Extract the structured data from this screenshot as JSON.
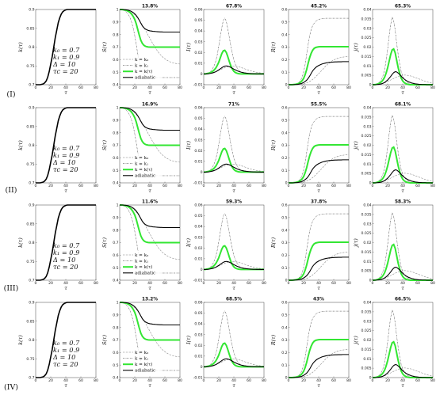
{
  "chart_data": {
    "type": "line",
    "x": [
      0,
      2,
      4,
      6,
      8,
      10,
      12,
      14,
      16,
      18,
      20,
      22,
      24,
      26,
      28,
      30,
      32,
      34,
      36,
      38,
      40,
      42,
      44,
      46,
      48,
      50,
      52,
      54,
      56,
      58,
      60,
      62,
      64,
      66,
      68,
      70,
      72,
      74,
      76,
      78,
      80
    ],
    "row_labels": [
      "(I)",
      "(II)",
      "(III)",
      "(IV)"
    ],
    "xlabel": "τ",
    "panel_ylabels": [
      "k(τ)",
      "S(τ)",
      "I(τ)",
      "R(τ)",
      "j(τ)"
    ],
    "parameter_text": [
      "k₀ = 0.7",
      "k₁ = 0.9",
      "Δ = 10",
      "τc = 20"
    ],
    "legend_entries": [
      "k = k₀",
      "k = k₁",
      "k = k(τ)",
      "adiabatic"
    ],
    "percentages": [
      [
        "13.8%",
        "67.8%",
        "45.2%",
        "65.3%"
      ],
      [
        "16.9%",
        "71%",
        "55.5%",
        "68.1%"
      ],
      [
        "11.6%",
        "59.3%",
        "37.8%",
        "58.3%"
      ],
      [
        "13.2%",
        "68.5%",
        "43%",
        "66.5%"
      ]
    ],
    "axes": {
      "xlim": [
        0,
        80
      ],
      "xticks": [
        0,
        20,
        40,
        60,
        80
      ],
      "k": {
        "ylim": [
          0.7,
          0.9
        ],
        "yticks": [
          0.7,
          0.75,
          0.8,
          0.85,
          0.9
        ]
      },
      "S": {
        "ylim": [
          0.4,
          1.0
        ],
        "yticks": [
          0.4,
          0.5,
          0.6,
          0.7,
          0.8,
          0.9,
          1
        ]
      },
      "I": {
        "ylim": [
          -0.01,
          0.06
        ],
        "yticks": [
          -0.01,
          0,
          0.01,
          0.02,
          0.03,
          0.04,
          0.05,
          0.06
        ]
      },
      "R": {
        "ylim": [
          0,
          0.6
        ],
        "yticks": [
          0,
          0.1,
          0.2,
          0.3,
          0.4,
          0.5,
          0.6
        ]
      },
      "j": {
        "ylim": [
          0,
          0.04
        ],
        "yticks": [
          0,
          0.005,
          0.01,
          0.015,
          0.02,
          0.025,
          0.03,
          0.035,
          0.04
        ]
      }
    },
    "colors": {
      "k0": "#808080",
      "k1": "#333333",
      "k_tau": "#33e633",
      "adiabatic": "#000000"
    },
    "k_curve": [
      0.7,
      0.7,
      0.7,
      0.7,
      0.701,
      0.702,
      0.705,
      0.71,
      0.72,
      0.735,
      0.755,
      0.775,
      0.8,
      0.825,
      0.845,
      0.865,
      0.878,
      0.888,
      0.894,
      0.897,
      0.899,
      0.9,
      0.9,
      0.9,
      0.9,
      0.9,
      0.9,
      0.9,
      0.9,
      0.9,
      0.9,
      0.9,
      0.9,
      0.9,
      0.9,
      0.9,
      0.9,
      0.9,
      0.9,
      0.9,
      0.9
    ],
    "S_series": [
      {
        "name": "k = k₀",
        "values": [
          1,
          1,
          1,
          0.998,
          0.996,
          0.992,
          0.988,
          0.982,
          0.975,
          0.966,
          0.956,
          0.944,
          0.93,
          0.914,
          0.897,
          0.878,
          0.858,
          0.836,
          0.814,
          0.792,
          0.77,
          0.748,
          0.727,
          0.707,
          0.688,
          0.67,
          0.654,
          0.64,
          0.627,
          0.616,
          0.606,
          0.598,
          0.591,
          0.585,
          0.58,
          0.576,
          0.573,
          0.57,
          0.568,
          0.566,
          0.565
        ]
      },
      {
        "name": "k = k₁",
        "values": [
          1,
          0.999,
          0.997,
          0.992,
          0.984,
          0.972,
          0.955,
          0.93,
          0.895,
          0.85,
          0.79,
          0.72,
          0.645,
          0.58,
          0.53,
          0.5,
          0.48,
          0.47,
          0.465,
          0.462,
          0.46,
          0.459,
          0.458,
          0.458,
          0.457,
          0.457,
          0.457,
          0.457,
          0.457,
          0.457,
          0.457,
          0.457,
          0.457,
          0.457,
          0.457,
          0.457,
          0.457,
          0.457,
          0.457,
          0.457,
          0.457
        ]
      },
      {
        "name": "k = k(τ)",
        "values": [
          1,
          1,
          0.999,
          0.997,
          0.994,
          0.99,
          0.984,
          0.975,
          0.962,
          0.944,
          0.92,
          0.885,
          0.84,
          0.795,
          0.755,
          0.73,
          0.715,
          0.707,
          0.703,
          0.701,
          0.7,
          0.7,
          0.7,
          0.7,
          0.7,
          0.7,
          0.7,
          0.7,
          0.7,
          0.7,
          0.7,
          0.7,
          0.7,
          0.7,
          0.7,
          0.7,
          0.7,
          0.7,
          0.7,
          0.7,
          0.7
        ]
      },
      {
        "name": "adiabatic",
        "values": [
          1,
          1,
          1,
          0.999,
          0.998,
          0.996,
          0.993,
          0.989,
          0.983,
          0.975,
          0.965,
          0.952,
          0.935,
          0.915,
          0.892,
          0.87,
          0.855,
          0.845,
          0.838,
          0.833,
          0.83,
          0.828,
          0.826,
          0.825,
          0.824,
          0.823,
          0.822,
          0.821,
          0.821,
          0.82,
          0.82,
          0.82,
          0.82,
          0.82,
          0.82,
          0.82,
          0.82,
          0.82,
          0.82,
          0.82,
          0.82
        ]
      }
    ],
    "I_series": [
      {
        "name": "k = k₀",
        "values": [
          0,
          0,
          0.0002,
          0.0004,
          0.0007,
          0.001,
          0.0014,
          0.0018,
          0.0023,
          0.0028,
          0.0034,
          0.004,
          0.0046,
          0.0052,
          0.0058,
          0.0063,
          0.0067,
          0.007,
          0.0072,
          0.0073,
          0.0073,
          0.0072,
          0.007,
          0.0067,
          0.0063,
          0.0059,
          0.0054,
          0.0049,
          0.0044,
          0.0039,
          0.0034,
          0.003,
          0.0026,
          0.0022,
          0.0019,
          0.0016,
          0.0013,
          0.0011,
          0.0009,
          0.0007,
          0.0006
        ]
      },
      {
        "name": "k = k₁",
        "values": [
          0,
          0.0002,
          0.0005,
          0.001,
          0.0018,
          0.003,
          0.005,
          0.008,
          0.012,
          0.018,
          0.026,
          0.035,
          0.043,
          0.05,
          0.052,
          0.049,
          0.042,
          0.034,
          0.026,
          0.019,
          0.013,
          0.009,
          0.006,
          0.004,
          0.0025,
          0.0015,
          0.001,
          0.0006,
          0.0004,
          0.0002,
          0.0001,
          0,
          0,
          0,
          0,
          0,
          0,
          0,
          0,
          0,
          0
        ]
      },
      {
        "name": "k = k(τ)",
        "values": [
          0,
          0,
          0.0003,
          0.0006,
          0.001,
          0.0016,
          0.0025,
          0.0038,
          0.0055,
          0.008,
          0.011,
          0.015,
          0.019,
          0.0215,
          0.022,
          0.02,
          0.016,
          0.0115,
          0.0075,
          0.0045,
          0.0025,
          0.0013,
          0.0007,
          0.0003,
          0.0001,
          0,
          0,
          0,
          0,
          0,
          0,
          0,
          0,
          0,
          0,
          0,
          0,
          0,
          0,
          0,
          0
        ]
      },
      {
        "name": "adiabatic",
        "values": [
          0,
          0,
          0.0001,
          0.0002,
          0.0004,
          0.0007,
          0.001,
          0.0015,
          0.0021,
          0.0029,
          0.0038,
          0.0048,
          0.0058,
          0.0067,
          0.0073,
          0.0075,
          0.0073,
          0.0068,
          0.0061,
          0.0053,
          0.0045,
          0.0038,
          0.0031,
          0.0025,
          0.002,
          0.0016,
          0.0013,
          0.001,
          0.0008,
          0.0006,
          0.0005,
          0.0004,
          0.0003,
          0.0002,
          0.0002,
          0.0001,
          0.0001,
          0.0001,
          0,
          0,
          0
        ]
      }
    ],
    "R_series": [
      {
        "name": "k = k₀",
        "values": [
          0,
          0,
          0,
          0,
          0,
          0.001,
          0.002,
          0.003,
          0.004,
          0.006,
          0.008,
          0.011,
          0.015,
          0.02,
          0.026,
          0.033,
          0.042,
          0.052,
          0.063,
          0.075,
          0.088,
          0.101,
          0.114,
          0.127,
          0.14,
          0.152,
          0.163,
          0.173,
          0.182,
          0.19,
          0.197,
          0.203,
          0.208,
          0.212,
          0.215,
          0.218,
          0.22,
          0.222,
          0.223,
          0.224,
          0.225
        ]
      },
      {
        "name": "k = k₁",
        "values": [
          0,
          0,
          0,
          0.001,
          0.003,
          0.006,
          0.011,
          0.02,
          0.035,
          0.06,
          0.1,
          0.16,
          0.24,
          0.32,
          0.39,
          0.44,
          0.47,
          0.49,
          0.505,
          0.515,
          0.52,
          0.524,
          0.526,
          0.528,
          0.529,
          0.53,
          0.53,
          0.53,
          0.53,
          0.53,
          0.53,
          0.53,
          0.53,
          0.53,
          0.53,
          0.53,
          0.53,
          0.53,
          0.53,
          0.53,
          0.53
        ]
      },
      {
        "name": "k = k(τ)",
        "values": [
          0,
          0,
          0,
          0.001,
          0.002,
          0.004,
          0.007,
          0.012,
          0.02,
          0.032,
          0.05,
          0.08,
          0.12,
          0.17,
          0.215,
          0.25,
          0.275,
          0.29,
          0.297,
          0.3,
          0.302,
          0.303,
          0.303,
          0.303,
          0.303,
          0.303,
          0.303,
          0.303,
          0.303,
          0.303,
          0.303,
          0.303,
          0.303,
          0.303,
          0.303,
          0.303,
          0.303,
          0.303,
          0.303,
          0.303,
          0.303
        ]
      },
      {
        "name": "adiabatic",
        "values": [
          0,
          0,
          0,
          0,
          0.001,
          0.002,
          0.003,
          0.005,
          0.008,
          0.012,
          0.018,
          0.026,
          0.036,
          0.05,
          0.068,
          0.09,
          0.11,
          0.125,
          0.137,
          0.146,
          0.153,
          0.159,
          0.164,
          0.168,
          0.171,
          0.174,
          0.176,
          0.178,
          0.179,
          0.18,
          0.181,
          0.182,
          0.182,
          0.183,
          0.183,
          0.183,
          0.184,
          0.184,
          0.184,
          0.184,
          0.184
        ]
      }
    ],
    "j_series": [
      {
        "name": "k = k₀",
        "values": [
          0,
          0,
          0,
          0.0001,
          0.0002,
          0.0003,
          0.0005,
          0.0007,
          0.001,
          0.0013,
          0.0017,
          0.0021,
          0.0025,
          0.0029,
          0.0033,
          0.0037,
          0.0041,
          0.0044,
          0.0047,
          0.0049,
          0.005,
          0.0051,
          0.0051,
          0.005,
          0.0049,
          0.0047,
          0.0045,
          0.0042,
          0.0039,
          0.0036,
          0.0033,
          0.003,
          0.0027,
          0.0024,
          0.0021,
          0.0018,
          0.0015,
          0.0013,
          0.0011,
          0.0009,
          0.0008
        ]
      },
      {
        "name": "k = k₁",
        "values": [
          0,
          0.0001,
          0.0002,
          0.0005,
          0.001,
          0.0017,
          0.003,
          0.005,
          0.008,
          0.013,
          0.019,
          0.026,
          0.032,
          0.036,
          0.034,
          0.029,
          0.022,
          0.016,
          0.011,
          0.007,
          0.0045,
          0.003,
          0.002,
          0.0012,
          0.0008,
          0.0005,
          0.0003,
          0.0002,
          0.0001,
          0.0001,
          0,
          0,
          0,
          0,
          0,
          0,
          0,
          0,
          0,
          0,
          0
        ]
      },
      {
        "name": "k = k(τ)",
        "values": [
          0,
          0,
          0.0001,
          0.0003,
          0.0006,
          0.001,
          0.0016,
          0.0026,
          0.004,
          0.0062,
          0.009,
          0.0125,
          0.016,
          0.0185,
          0.019,
          0.017,
          0.013,
          0.009,
          0.006,
          0.0035,
          0.002,
          0.0011,
          0.0006,
          0.0003,
          0.0001,
          0,
          0,
          0,
          0,
          0,
          0,
          0,
          0,
          0,
          0,
          0,
          0,
          0,
          0,
          0,
          0
        ]
      },
      {
        "name": "adiabatic",
        "values": [
          0,
          0,
          0,
          0.0001,
          0.0002,
          0.0003,
          0.0005,
          0.0008,
          0.0012,
          0.0018,
          0.0025,
          0.0034,
          0.0044,
          0.0055,
          0.0064,
          0.0069,
          0.0068,
          0.0062,
          0.0054,
          0.0045,
          0.0037,
          0.003,
          0.0024,
          0.0019,
          0.0015,
          0.0012,
          0.0009,
          0.0007,
          0.0005,
          0.0004,
          0.0003,
          0.0002,
          0.0002,
          0.0001,
          0.0001,
          0.0001,
          0,
          0,
          0,
          0,
          0
        ]
      }
    ]
  }
}
